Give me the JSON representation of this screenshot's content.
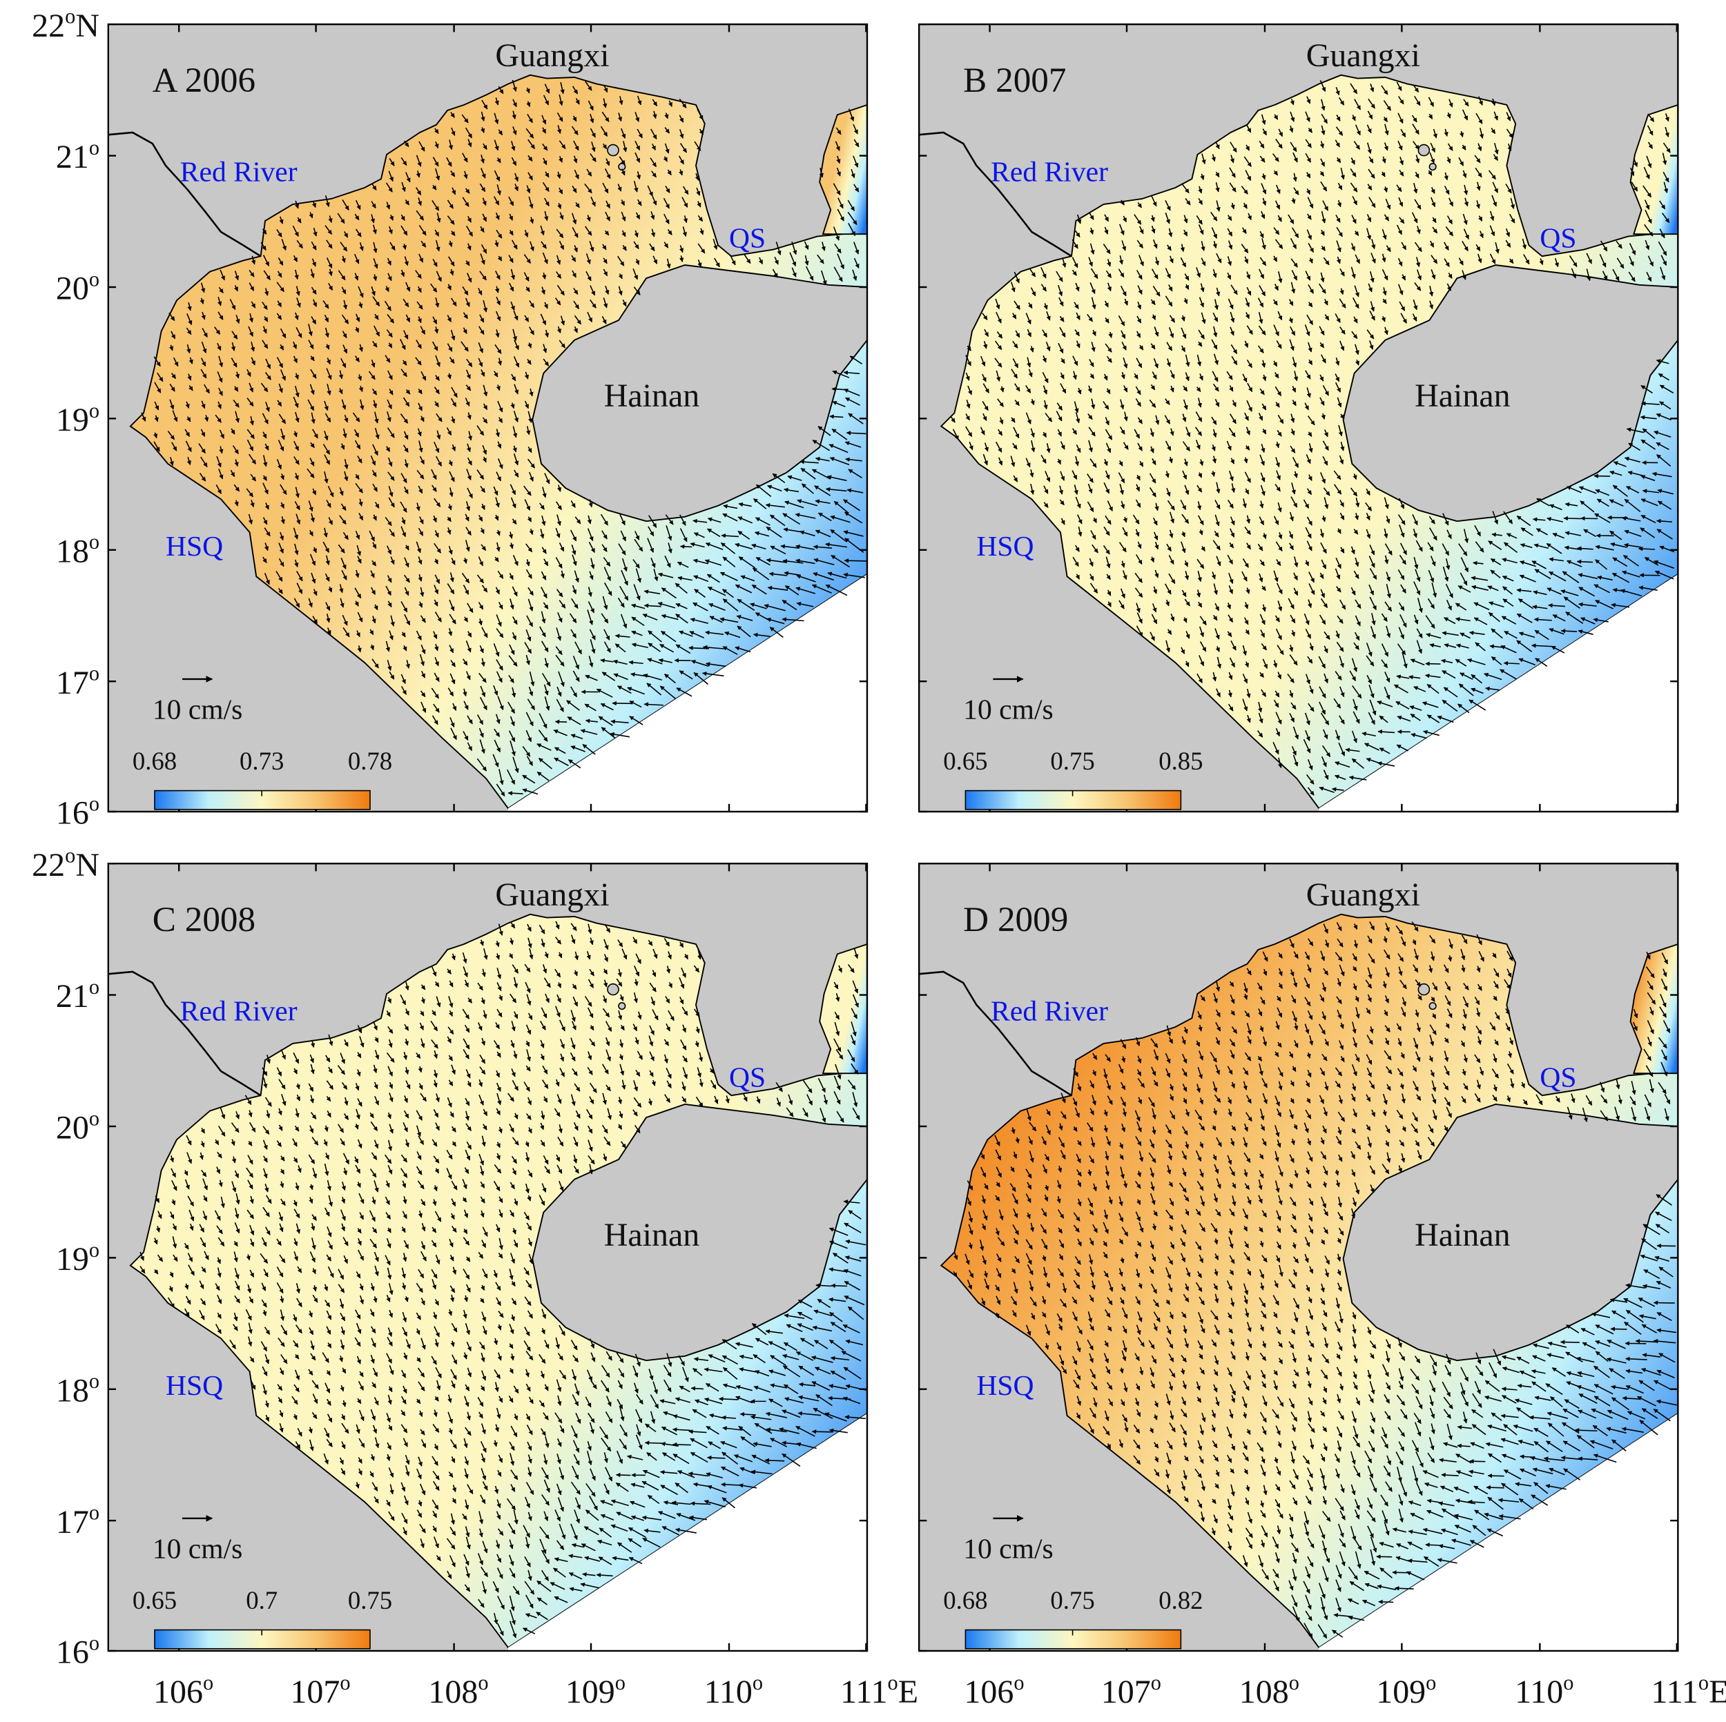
{
  "figure": {
    "lat_labels": [
      {
        "deg": "22",
        "suffix": "N"
      },
      {
        "deg": "21",
        "suffix": ""
      },
      {
        "deg": "20",
        "suffix": ""
      },
      {
        "deg": "19",
        "suffix": ""
      },
      {
        "deg": "18",
        "suffix": ""
      },
      {
        "deg": "17",
        "suffix": ""
      },
      {
        "deg": "16",
        "suffix": ""
      }
    ],
    "lon_labels": [
      {
        "deg": "106",
        "suffix": ""
      },
      {
        "deg": "107",
        "suffix": ""
      },
      {
        "deg": "108",
        "suffix": ""
      },
      {
        "deg": "109",
        "suffix": ""
      },
      {
        "deg": "110",
        "suffix": ""
      },
      {
        "deg": "111",
        "suffix": "E"
      }
    ],
    "degree_mark": "o",
    "place_labels": {
      "guangxi": "Guangxi",
      "hainan": "Hainan",
      "red_river": "Red River",
      "qs": "QS",
      "hsq": "HSQ"
    },
    "vector_scale_label": "10 cm/s",
    "colors": {
      "land": "#c8c8c8",
      "place_blue": "#0a14e6",
      "colormap": [
        "#1a78f0",
        "#bff0fb",
        "#fdf6c0",
        "#f7c470",
        "#f07a10"
      ]
    }
  },
  "panels": [
    {
      "letter": "A",
      "year": "2006",
      "title": "A 2006",
      "colorbar_ticks": [
        "0.68",
        "0.73",
        "0.78"
      ],
      "warmth": 0.75,
      "cold": 0.8
    },
    {
      "letter": "B",
      "year": "2007",
      "title": "B 2007",
      "colorbar_ticks": [
        "0.65",
        "0.75",
        "0.85"
      ],
      "warmth": 0.45,
      "cold": 0.7
    },
    {
      "letter": "C",
      "year": "2008",
      "title": "C 2008",
      "colorbar_ticks": [
        "0.65",
        "0.7",
        "0.75"
      ],
      "warmth": 0.35,
      "cold": 0.85
    },
    {
      "letter": "D",
      "year": "2009",
      "title": "D 2009",
      "colorbar_ticks": [
        "0.68",
        "0.75",
        "0.82"
      ],
      "warmth": 0.95,
      "cold": 0.9
    }
  ]
}
